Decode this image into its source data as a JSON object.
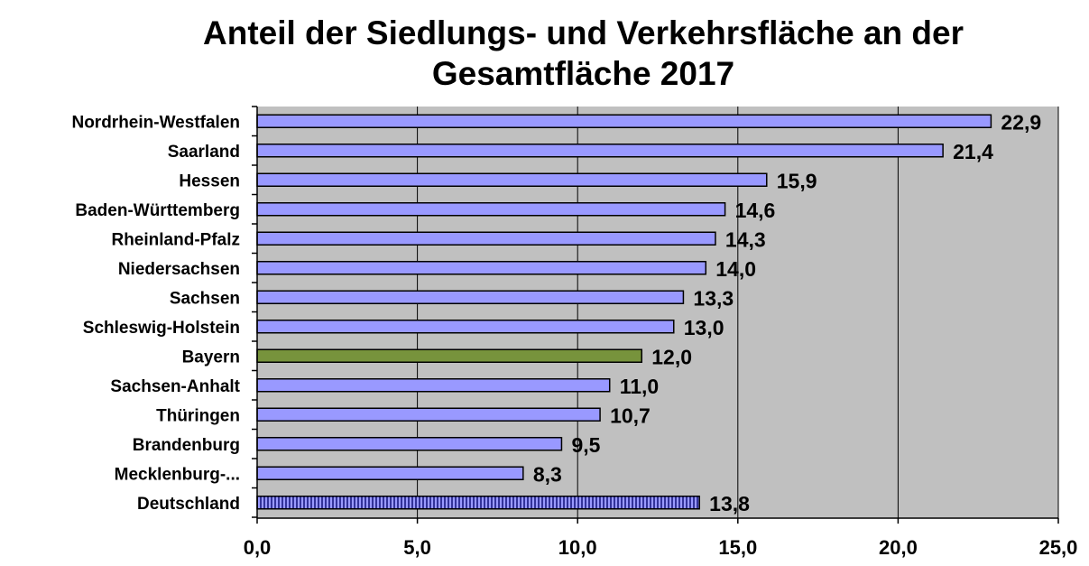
{
  "chart_data": {
    "type": "bar",
    "orientation": "horizontal",
    "title": "Anteil der Siedlungs- und Verkehrsfläche an der Gesamtfläche 2017",
    "title_lines": [
      "Anteil der Siedlungs- und Verkehrsfläche an der",
      "Gesamtfläche 2017"
    ],
    "categories": [
      "Nordrhein-Westfalen",
      "Saarland",
      "Hessen",
      "Baden-Württemberg",
      "Rheinland-Pfalz",
      "Niedersachsen",
      "Sachsen",
      "Schleswig-Holstein",
      "Bayern",
      "Sachsen-Anhalt",
      "Thüringen",
      "Brandenburg",
      "Mecklenburg-...",
      "Deutschland"
    ],
    "values": [
      22.9,
      21.4,
      15.9,
      14.6,
      14.3,
      14.0,
      13.3,
      13.0,
      12.0,
      11.0,
      10.7,
      9.5,
      8.3,
      13.8
    ],
    "value_labels": [
      "22,9",
      "21,4",
      "15,9",
      "14,6",
      "14,3",
      "14,0",
      "13,3",
      "13,0",
      "12,0",
      "11,0",
      "10,7",
      "9,5",
      "8,3",
      "13,8"
    ],
    "xlim": [
      0,
      25
    ],
    "x_ticks": [
      0,
      5,
      10,
      15,
      20,
      25
    ],
    "x_tick_labels": [
      "0,0",
      "5,0",
      "10,0",
      "15,0",
      "20,0",
      "25,0"
    ],
    "xlabel": "",
    "ylabel": "",
    "grid": true,
    "legend": "none",
    "colors": {
      "default_bar": "#9999ff",
      "highlight_bar": "#77933c",
      "highlight_category": "Bayern",
      "total_bar": "#333399",
      "total_category": "Deutschland",
      "plot_background": "#c0c0c0",
      "bar_outline": "#000000"
    }
  }
}
